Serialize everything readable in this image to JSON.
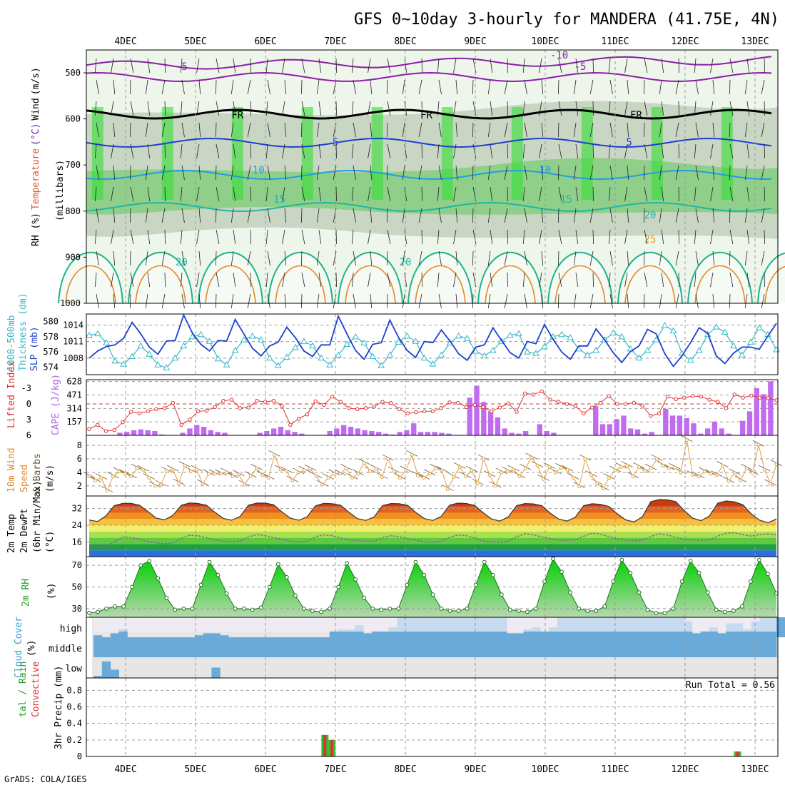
{
  "title": "GFS 0~10day 3-hourly for MANDERA (41.75E, 4N)",
  "footer": "GrADS: COLA/IGES",
  "run_total": "Run Total = 0.56",
  "dates": [
    "4DEC",
    "5DEC",
    "6DEC",
    "7DEC",
    "8DEC",
    "9DEC",
    "10DEC",
    "11DEC",
    "12DEC",
    "13DEC"
  ],
  "panel_labels": {
    "upper": [
      "RH (%)",
      "Temperature",
      "(°C)",
      "Wind",
      "(m/s)"
    ],
    "pressure_unit": "(millibars)",
    "thick": [
      "1000-500mb",
      "Thickness (dm)"
    ],
    "slp": "SLP (mb)",
    "li": "Lifted Index",
    "cape": "CAPE (J/kg)",
    "wind10": [
      "10m Wind",
      "Speed",
      "& Barbs",
      "(m/s)"
    ],
    "temp2m": [
      "2m Temp",
      "2m DewPt",
      "(6hr Min/Max)",
      "(°C)"
    ],
    "rh2m": [
      "2m RH",
      "(%)"
    ],
    "cloud": [
      "Cloud Cover",
      "(%)"
    ],
    "precip": [
      "tal / Rain",
      "Convective",
      "3hr Precip (mm)"
    ]
  },
  "chart_data": [
    {
      "type": "heatmap",
      "name": "upper-air cross-section",
      "ylabel": "(millibars)",
      "yticks": [
        500,
        600,
        700,
        800,
        900,
        1000
      ],
      "ylim": [
        1000,
        460
      ],
      "rh_color_scale": [
        "30",
        "50",
        "70",
        "90"
      ],
      "temperature_contour_labels": [
        {
          "value": "-10",
          "date_index": 6.2
        },
        {
          "value": "-5",
          "date_index": 0.8
        },
        {
          "value": "-5",
          "date_index": 6.5
        },
        {
          "value": "FR",
          "date_index": 1.6
        },
        {
          "value": "FR",
          "date_index": 4.3
        },
        {
          "value": "FR",
          "date_index": 7.3
        },
        {
          "value": "5",
          "date_index": 3.0
        },
        {
          "value": "5",
          "date_index": 7.2
        },
        {
          "value": "10",
          "date_index": 1.9
        },
        {
          "value": "10",
          "date_index": 6.0
        },
        {
          "value": "15",
          "date_index": 2.2
        },
        {
          "value": "15",
          "date_index": 6.3
        },
        {
          "value": "20",
          "date_index": 7.5
        },
        {
          "value": "20",
          "date_index": 0.8
        },
        {
          "value": "20",
          "date_index": 4.0
        },
        {
          "value": "25",
          "date_index": 7.5
        }
      ]
    },
    {
      "type": "line",
      "name": "thickness and SLP",
      "series": [
        {
          "name": "1000-500mb Thickness (dm)",
          "color": "#33b8c8",
          "values": [
            578.2,
            578.4,
            577.2,
            574.8,
            574.4,
            575.4,
            576.8,
            575.7,
            574.3,
            573.9,
            575.2,
            576.8,
            578.0,
            578.3,
            577.4,
            575.1,
            574.3,
            576.2,
            577.6,
            578.1,
            577.6,
            575.2,
            574.2,
            575.3,
            576.6,
            577.4,
            576.8,
            575.2,
            574.3,
            575.6,
            577.0,
            578.0,
            577.2,
            575.4,
            574.2,
            575.6,
            577.3,
            578.1,
            577.4,
            575.2,
            574.4,
            575.6,
            577.2,
            578.1,
            577.8,
            576.1,
            575.5,
            576.2,
            577.4,
            578.2,
            578.4,
            576.0,
            575.8,
            576.7,
            578.0,
            578.3,
            577.9,
            576.4,
            575.6,
            576.2,
            577.6,
            578.5,
            578.0,
            576.4,
            575.2,
            576.2,
            577.6,
            579.5,
            578.8,
            575.8,
            574.9,
            576.2,
            578.3,
            579.3,
            578.6,
            576.8,
            575.6,
            577.3,
            579.2,
            578.3,
            576.3
          ]
        },
        {
          "name": "SLP (mb)",
          "color": "#1f3fcf",
          "values": [
            1008.0,
            1009.3,
            1010.1,
            1010.4,
            1011.6,
            1014.5,
            1012.4,
            1010.0,
            1008.7,
            1011.1,
            1011.2,
            1015.8,
            1012.6,
            1010.5,
            1009.3,
            1011.2,
            1011.1,
            1015.0,
            1012.4,
            1009.8,
            1008.4,
            1010.2,
            1010.9,
            1013.6,
            1011.7,
            1009.3,
            1008.3,
            1010.4,
            1010.4,
            1015.6,
            1012.4,
            1009.4,
            1007.8,
            1010.5,
            1010.8,
            1014.9,
            1011.8,
            1009.4,
            1008.1,
            1011.0,
            1010.8,
            1013.1,
            1011.1,
            1008.8,
            1007.6,
            1010.0,
            1010.4,
            1013.5,
            1011.2,
            1009.0,
            1008.0,
            1011.0,
            1010.6,
            1014.1,
            1011.4,
            1009.1,
            1007.8,
            1010.2,
            1010.2,
            1013.3,
            1011.3,
            1009.0,
            1007.2,
            1009.2,
            1010.2,
            1013.2,
            1012.4,
            1008.8,
            1006.5,
            1008.4,
            1010.8,
            1013.5,
            1012.5,
            1008.4,
            1007.0,
            1008.9,
            1010.0,
            1010.0,
            1009.6,
            1012.0,
            1014.3
          ]
        }
      ],
      "ylim_thickness": [
        573,
        581
      ],
      "yticks_thickness": [
        574,
        576,
        578,
        580
      ],
      "ylim_slp": [
        1005,
        1016
      ],
      "yticks_slp": [
        1008,
        1011,
        1014
      ]
    },
    {
      "type": "bar",
      "name": "CAPE and Lifted Index",
      "cape_yticks": [
        157,
        314,
        471,
        628
      ],
      "li_yticks": [
        6,
        3,
        0,
        -3
      ],
      "cape_values": [
        0,
        0,
        0,
        0,
        30,
        40,
        60,
        70,
        60,
        50,
        10,
        0,
        0,
        30,
        80,
        120,
        100,
        60,
        40,
        30,
        0,
        0,
        0,
        0,
        30,
        50,
        80,
        100,
        60,
        40,
        20,
        0,
        0,
        0,
        50,
        80,
        120,
        100,
        80,
        60,
        50,
        40,
        20,
        10,
        40,
        60,
        140,
        40,
        40,
        40,
        30,
        20,
        0,
        0,
        440,
        580,
        390,
        280,
        210,
        80,
        30,
        20,
        50,
        0,
        130,
        50,
        30,
        0,
        0,
        0,
        0,
        0,
        340,
        130,
        130,
        190,
        230,
        80,
        70,
        20,
        40,
        0,
        310,
        230,
        230,
        200,
        140,
        20,
        80,
        160,
        80,
        20,
        0,
        170,
        280,
        550,
        480,
        630
      ],
      "lifted_index": [
        4.8,
        4.0,
        5.2,
        5.0,
        3.5,
        1.5,
        1.8,
        1.4,
        1.0,
        0.8,
        -0.2,
        4.0,
        3.0,
        1.4,
        1.3,
        0.6,
        -0.6,
        -0.8,
        0.8,
        0.7,
        -0.6,
        -0.4,
        -0.6,
        0.4,
        4.0,
        2.8,
        2.0,
        -0.5,
        0.2,
        -1.4,
        -0.4,
        0.8,
        1.0,
        0.8,
        0.5,
        -0.4,
        -0.2,
        1.0,
        1.8,
        1.6,
        1.4,
        1.4,
        0.8,
        -0.3,
        -0.2,
        0.6,
        0.2,
        0.6,
        1.4,
        0.7,
        -0.1,
        1.5,
        -2.0,
        -1.8,
        -2.4,
        -0.8,
        -0.4,
        0.0,
        0.4,
        1.8,
        0.7,
        -0.2,
        -1.5,
        0.0,
        0.0,
        -0.2,
        0.3,
        2.3,
        1.8,
        -1.4,
        -0.9,
        -1.2,
        -1.5,
        -1.4,
        -0.8,
        -0.4,
        0.8,
        -1.8,
        -1.2,
        -1.6,
        -1.2,
        -1.1,
        -0.7
      ]
    },
    {
      "type": "line",
      "name": "10m wind speed",
      "ylabel": "(m/s)",
      "yticks": [
        2,
        4,
        6,
        8
      ],
      "ylim": [
        0.5,
        9.5
      ],
      "values": [
        3.4,
        2.8,
        3.2,
        1.3,
        3.4,
        4.1,
        3.8,
        3.4,
        4.6,
        4.4,
        3.2,
        2.0,
        2.2,
        4.2,
        4.4,
        2.4,
        5.0,
        4.2,
        4.4,
        2.3,
        3.8,
        3.8,
        3.8,
        4.0,
        3.4,
        3.7,
        2.2,
        3.5,
        4.6,
        3.6,
        3.2,
        6.6,
        4.4,
        4.2,
        2.8,
        4.0,
        4.3,
        4.5,
        3.4,
        2.2,
        3.2,
        3.8,
        3.8,
        4.6,
        3.2,
        3.8,
        5.4,
        4.2,
        4.5,
        3.3,
        6.0,
        4.2,
        3.2,
        4.3,
        6.6,
        3.5,
        3.2,
        3.8,
        4.6,
        4.3,
        1.5,
        3.3,
        4.8,
        3.4,
        4.3,
        2.4,
        6.0,
        3.6,
        2.0,
        4.0,
        4.2,
        4.4,
        3.4,
        4.6,
        6.2,
        5.0,
        3.0,
        4.8,
        4.0,
        4.7,
        4.4,
        3.2,
        1.9,
        6.0,
        3.6,
        2.4,
        1.6,
        3.2,
        4.3,
        4.8,
        5.0,
        3.4,
        4.8,
        4.2,
        4.6,
        6.0,
        5.0,
        4.6,
        4.7,
        4.0,
        8.8,
        3.6,
        3.4,
        4.1,
        3.8,
        3.6,
        5.0,
        2.7,
        3.9,
        2.8,
        4.6,
        3.9,
        8.1,
        4.4,
        2.3,
        5.2
      ]
    },
    {
      "type": "area",
      "name": "2m temperature and dewpoint",
      "ylabel": "(°C)",
      "yticks": [
        16,
        24,
        32
      ],
      "ylim": [
        9,
        38
      ],
      "temp": [
        26.5,
        25.8,
        28.5,
        33.4,
        34.5,
        34.5,
        33.6,
        30.6,
        27.4,
        26.6,
        28.8,
        33.6,
        34.7,
        34.4,
        33.6,
        30.2,
        27.3,
        26.4,
        28.2,
        33.6,
        34.6,
        34.6,
        33.8,
        30.4,
        27.4,
        26.4,
        28.0,
        33.3,
        34.5,
        34.3,
        33.6,
        30.2,
        27.2,
        26.3,
        28.0,
        33.4,
        34.4,
        34.3,
        33.5,
        30.0,
        27.2,
        26.3,
        28.2,
        33.6,
        34.6,
        34.4,
        33.5,
        30.0,
        27.0,
        26.0,
        28.0,
        33.4,
        34.4,
        34.2,
        33.4,
        29.8,
        27.0,
        26.0,
        27.8,
        33.4,
        34.3,
        34.0,
        33.0,
        29.5,
        26.6,
        25.6,
        28.0,
        35.2,
        36.3,
        36.2,
        35.3,
        31.0,
        27.4,
        26.2,
        28.4,
        34.6,
        35.6,
        35.2,
        33.8,
        29.4,
        26.4,
        25.2,
        27.0
      ],
      "dewpoint": [
        13.8,
        13.6,
        14.0,
        16.0,
        18.4,
        18.0,
        17.4,
        16.2,
        15.6,
        15.2,
        15.5,
        17.8,
        19.2,
        19.0,
        18.0,
        17.0,
        16.4,
        16.0,
        16.5,
        18.4,
        19.6,
        19.0,
        18.0,
        17.2,
        16.4,
        16.0,
        16.4,
        18.4,
        19.4,
        19.0,
        17.8,
        17.0,
        16.8,
        16.5,
        16.4,
        18.0,
        19.0,
        18.5,
        17.6,
        17.0,
        16.0,
        15.8,
        16.4,
        18.2,
        19.4,
        19.0,
        17.8,
        16.4,
        16.0,
        15.8,
        16.4,
        18.4,
        20.0,
        19.4,
        18.4,
        17.6,
        17.0,
        16.8,
        17.0,
        18.8,
        20.2,
        19.8,
        18.5,
        17.5,
        17.0,
        16.5,
        16.8,
        18.6,
        20.0,
        19.4,
        18.2,
        17.2,
        17.0,
        16.8,
        17.0,
        18.8,
        20.2,
        20.4,
        19.5,
        18.8,
        19.6,
        19.8,
        19.5
      ]
    },
    {
      "type": "area",
      "name": "2m relative humidity",
      "ylabel": "(%)",
      "yticks": [
        30,
        50,
        70
      ],
      "ylim": [
        22,
        78
      ],
      "values": [
        26,
        27,
        30,
        32,
        32,
        50,
        70,
        74,
        58,
        40,
        29,
        30,
        30,
        52,
        73,
        61,
        44,
        30,
        30,
        29,
        31,
        50,
        71,
        59,
        42,
        30,
        28,
        27,
        30,
        50,
        72,
        57,
        40,
        30,
        29,
        30,
        30,
        52,
        73,
        61,
        43,
        30,
        28,
        28,
        30,
        52,
        73,
        61,
        43,
        29,
        28,
        27,
        30,
        55,
        76,
        64,
        45,
        30,
        28,
        28,
        32,
        55,
        75,
        63,
        45,
        29,
        26,
        26,
        30,
        55,
        74,
        63,
        45,
        29,
        27,
        28,
        32,
        55,
        75,
        62,
        44
      ]
    },
    {
      "type": "bar",
      "name": "cloud cover",
      "levels": [
        "high",
        "middle",
        "low"
      ],
      "high": [
        10,
        0,
        20,
        40,
        0,
        0,
        0,
        0,
        0,
        0,
        0,
        0,
        10,
        20,
        20,
        10,
        0,
        0,
        0,
        0,
        0,
        0,
        0,
        0,
        0,
        0,
        0,
        0,
        30,
        40,
        40,
        60,
        20,
        30,
        30,
        50,
        100,
        100,
        100,
        100,
        100,
        100,
        100,
        100,
        100,
        100,
        100,
        100,
        100,
        20,
        20,
        40,
        50,
        30,
        50,
        100,
        100,
        100,
        100,
        100,
        100,
        100,
        100,
        100,
        100,
        100,
        100,
        100,
        100,
        100,
        80,
        20,
        30,
        50,
        20,
        70,
        70,
        40,
        80,
        100,
        100,
        100
      ],
      "middle": [
        100,
        100,
        100,
        100,
        100,
        100,
        100,
        100,
        100,
        100,
        100,
        100,
        100,
        100,
        100,
        100,
        100,
        100,
        100,
        100,
        100,
        100,
        100,
        100,
        100,
        100,
        100,
        100,
        100,
        100,
        100,
        100,
        100,
        100,
        100,
        100,
        100,
        100,
        100,
        100,
        100,
        100,
        100,
        100,
        100,
        100,
        100,
        100,
        100,
        100,
        100,
        100,
        100,
        100,
        100,
        100,
        100,
        100,
        100,
        100,
        100,
        100,
        100,
        100,
        100,
        100,
        100,
        100,
        100,
        100,
        100,
        100,
        100,
        100,
        100,
        100,
        100,
        100,
        100,
        100,
        100
      ],
      "low": [
        10,
        80,
        40,
        0,
        0,
        0,
        0,
        0,
        0,
        0,
        0,
        0,
        0,
        0,
        50,
        0,
        0,
        0,
        0,
        0,
        0,
        0,
        0,
        0,
        0,
        0,
        0,
        0,
        0,
        0,
        0,
        0,
        0,
        0,
        0,
        0,
        0,
        0,
        0,
        0,
        0,
        0,
        0,
        0,
        0,
        0,
        0,
        0,
        0,
        0,
        0,
        0,
        0,
        0,
        0,
        0,
        0,
        0,
        0,
        0,
        0,
        0,
        0,
        0,
        0,
        0,
        0,
        0,
        0,
        0,
        0,
        0,
        0,
        0,
        0,
        0,
        0,
        0,
        0,
        0,
        0
      ]
    },
    {
      "type": "bar",
      "name": "3hr precipitation",
      "ylabel": "3hr Precip (mm)",
      "yticks": [
        0,
        0.2,
        0.4,
        0.6,
        0.8
      ],
      "ylim": [
        0,
        0.95
      ],
      "bars": [
        {
          "date_index": 2.85,
          "total": 0.26,
          "convective": 0.26
        },
        {
          "date_index": 2.95,
          "total": 0.2,
          "convective": 0.2
        },
        {
          "date_index": 8.75,
          "total": 0.06,
          "convective": 0.06
        }
      ]
    }
  ]
}
